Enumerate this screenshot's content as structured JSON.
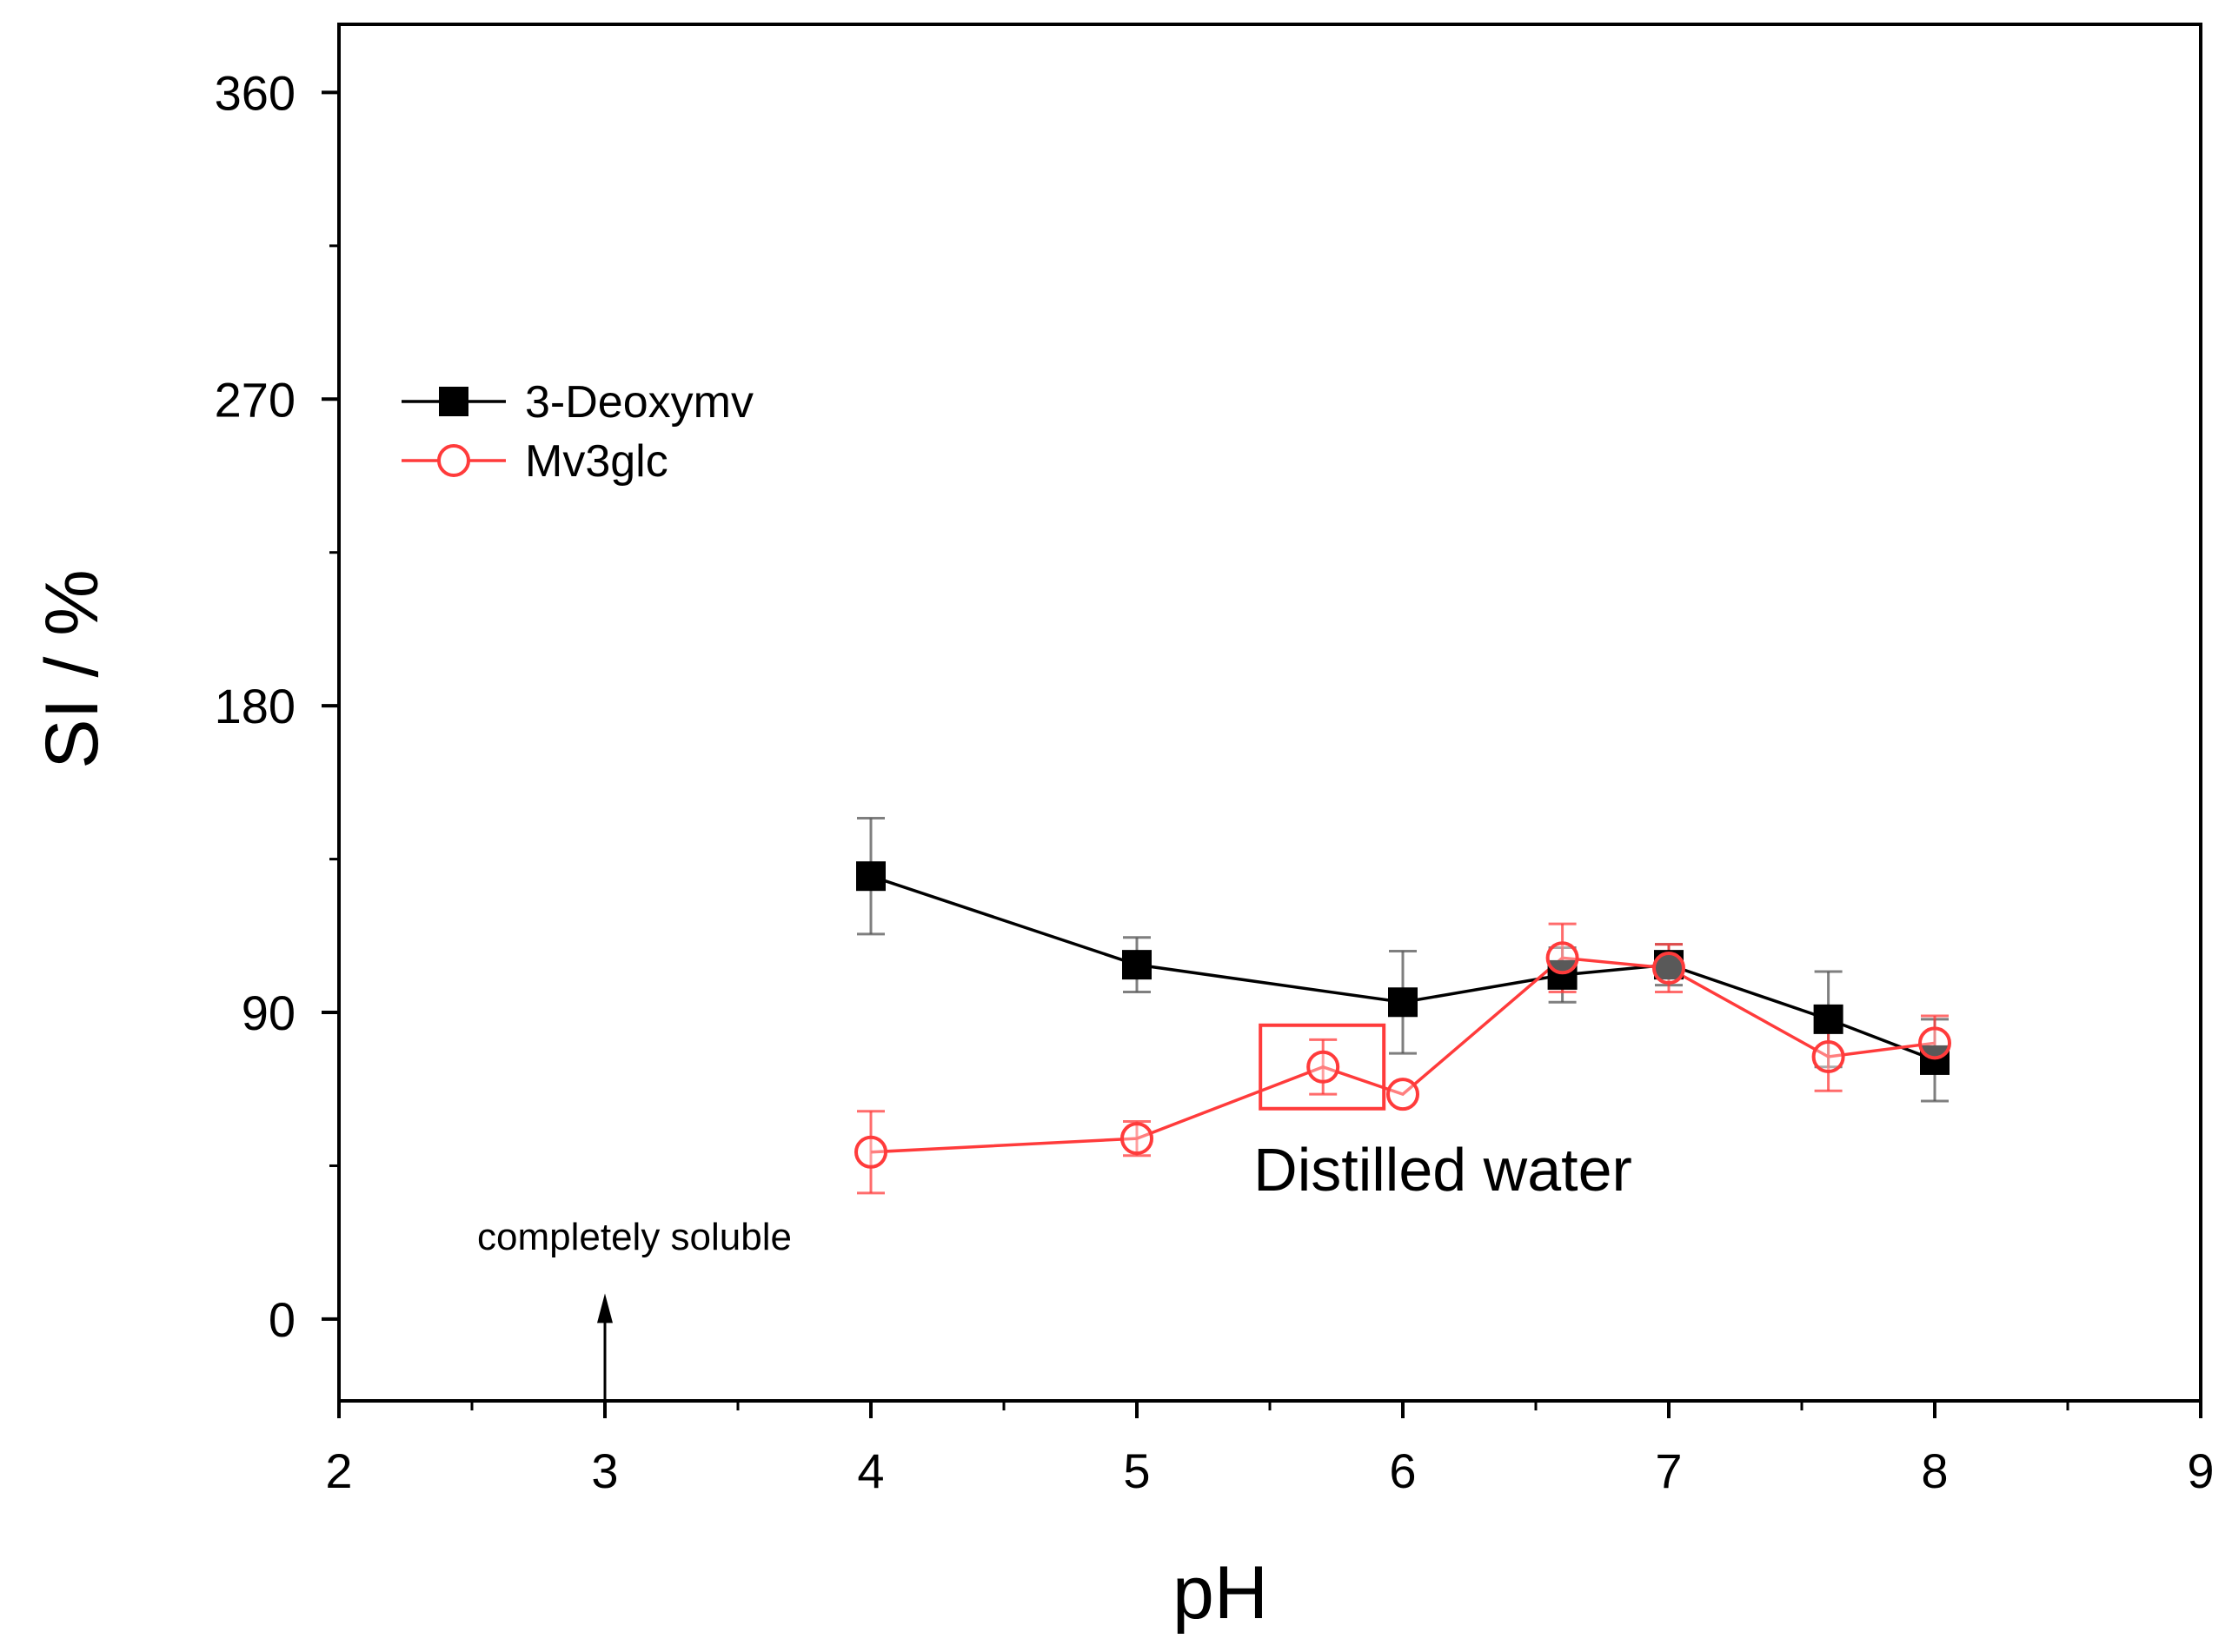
{
  "chart_data": {
    "type": "line",
    "title": "",
    "xlabel": "pH",
    "ylabel": "SI / %",
    "xlim": [
      2,
      9
    ],
    "ylim": [
      -24,
      380
    ],
    "x_ticks": [
      2,
      3,
      4,
      5,
      6,
      7,
      8,
      9
    ],
    "x_tick_labels": [
      "2",
      "3",
      "4",
      "5",
      "6",
      "7",
      "8",
      "9"
    ],
    "y_ticks": [
      0,
      90,
      180,
      270,
      360
    ],
    "y_tick_labels": [
      "0",
      "90",
      "180",
      "270",
      "360"
    ],
    "grid": false,
    "legend_position": "upper-left",
    "series": [
      {
        "name": "3-Deoxymv",
        "color": "#000000",
        "marker": "filled-square",
        "x": [
          4,
          5,
          6,
          6.6,
          7,
          7.6,
          8
        ],
        "y": [
          130,
          104,
          93,
          101,
          104,
          88,
          76
        ],
        "y_err": [
          17,
          8,
          15,
          8,
          6,
          14,
          12
        ]
      },
      {
        "name": "Mv3glc",
        "color": "#ff3b3b",
        "marker": "open-circle",
        "x": [
          4,
          5,
          5.7,
          6,
          6.6,
          7,
          7.6,
          8
        ],
        "y": [
          49,
          53,
          74,
          66,
          106,
          103,
          77,
          81
        ],
        "y_err": [
          12,
          5,
          8,
          0,
          10,
          7,
          10,
          8
        ]
      }
    ],
    "annotations": [
      {
        "text": "completely soluble",
        "x": 3,
        "arrow_to_y": 6
      },
      {
        "text": "Distilled water",
        "highlight_point": {
          "series": "Mv3glc",
          "x": 5.7,
          "y": 74
        }
      }
    ]
  }
}
